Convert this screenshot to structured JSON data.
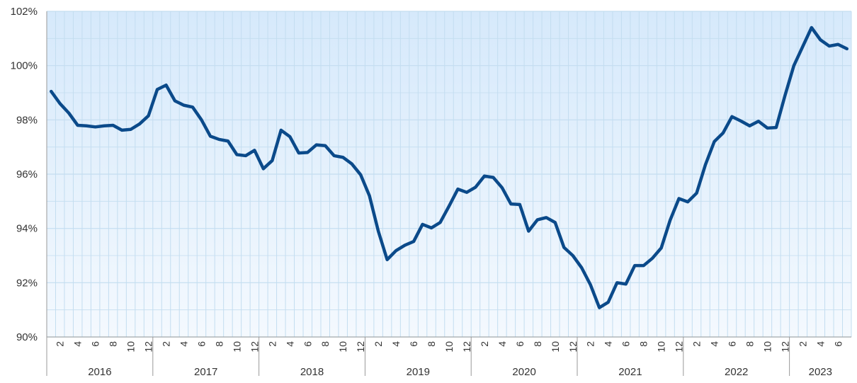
{
  "chart_data": {
    "type": "line",
    "title": "",
    "xlabel": "",
    "ylabel": "",
    "ylim": [
      90,
      102
    ],
    "yticks": [
      90,
      92,
      94,
      96,
      98,
      100,
      102
    ],
    "ytick_suffix": "%",
    "grid": true,
    "legend": "none",
    "x_start": "2016-01",
    "x_end": "2023-07",
    "month_tick_labels": [
      "2",
      "4",
      "6",
      "8",
      "10",
      "12"
    ],
    "years": [
      "2016",
      "2017",
      "2018",
      "2019",
      "2020",
      "2021",
      "2022",
      "2023"
    ],
    "series": [
      {
        "color": "#0b4a8a",
        "x": [
          "2016-01",
          "2016-02",
          "2016-03",
          "2016-04",
          "2016-05",
          "2016-06",
          "2016-07",
          "2016-08",
          "2016-09",
          "2016-10",
          "2016-11",
          "2016-12",
          "2017-01",
          "2017-02",
          "2017-03",
          "2017-04",
          "2017-05",
          "2017-06",
          "2017-07",
          "2017-08",
          "2017-09",
          "2017-10",
          "2017-11",
          "2017-12",
          "2018-01",
          "2018-02",
          "2018-03",
          "2018-04",
          "2018-05",
          "2018-06",
          "2018-07",
          "2018-08",
          "2018-09",
          "2018-10",
          "2018-11",
          "2018-12",
          "2019-01",
          "2019-02",
          "2019-03",
          "2019-04",
          "2019-05",
          "2019-06",
          "2019-07",
          "2019-08",
          "2019-09",
          "2019-10",
          "2019-11",
          "2019-12",
          "2020-01",
          "2020-02",
          "2020-03",
          "2020-04",
          "2020-05",
          "2020-06",
          "2020-07",
          "2020-08",
          "2020-09",
          "2020-10",
          "2020-11",
          "2020-12",
          "2021-01",
          "2021-02",
          "2021-03",
          "2021-04",
          "2021-05",
          "2021-06",
          "2021-07",
          "2021-08",
          "2021-09",
          "2021-10",
          "2021-11",
          "2021-12",
          "2022-01",
          "2022-02",
          "2022-03",
          "2022-04",
          "2022-05",
          "2022-06",
          "2022-07",
          "2022-08",
          "2022-09",
          "2022-10",
          "2022-11",
          "2022-12",
          "2023-01",
          "2023-02",
          "2023-03",
          "2023-04",
          "2023-05",
          "2023-06",
          "2023-07"
        ],
        "values": [
          99.05,
          98.6,
          98.25,
          97.8,
          97.78,
          97.74,
          97.78,
          97.8,
          97.62,
          97.65,
          97.85,
          98.15,
          99.12,
          99.28,
          98.7,
          98.54,
          98.47,
          98.0,
          97.4,
          97.28,
          97.22,
          96.72,
          96.68,
          96.88,
          96.2,
          96.5,
          97.62,
          97.38,
          96.78,
          96.8,
          97.08,
          97.05,
          96.68,
          96.62,
          96.38,
          95.98,
          95.2,
          93.9,
          92.85,
          93.18,
          93.38,
          93.52,
          94.15,
          94.02,
          94.22,
          94.82,
          95.45,
          95.33,
          95.52,
          95.93,
          95.88,
          95.5,
          94.9,
          94.88,
          93.9,
          94.32,
          94.4,
          94.22,
          93.3,
          93.0,
          92.55,
          91.92,
          91.08,
          91.28,
          92.0,
          91.95,
          92.63,
          92.63,
          92.9,
          93.28,
          94.3,
          95.1,
          94.98,
          95.3,
          96.35,
          97.2,
          97.52,
          98.12,
          97.96,
          97.78,
          97.95,
          97.7,
          97.72,
          98.9,
          100.0,
          100.7,
          101.4,
          100.95,
          100.72,
          100.78,
          100.62
        ]
      }
    ]
  },
  "colors": {
    "plot_bg_top": "#d6e9fb",
    "plot_bg_bottom": "#f4f9fe",
    "grid": "#c3ddf0",
    "axis": "#999999",
    "line": "#0b4a8a"
  }
}
